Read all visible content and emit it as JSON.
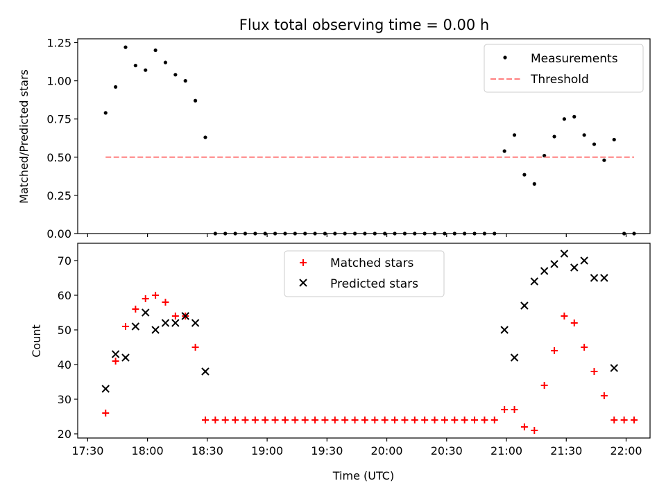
{
  "figure_title": "Flux total observing time = 0.00 h",
  "x_axis": {
    "label": "Time (UTC)",
    "ticks": [
      {
        "label": "17:30",
        "value": -30
      },
      {
        "label": "18:00",
        "value": 0
      },
      {
        "label": "18:30",
        "value": 30
      },
      {
        "label": "19:00",
        "value": 60
      },
      {
        "label": "19:30",
        "value": 90
      },
      {
        "label": "20:00",
        "value": 120
      },
      {
        "label": "20:30",
        "value": 150
      },
      {
        "label": "21:00",
        "value": 180
      },
      {
        "label": "21:30",
        "value": 210
      },
      {
        "label": "22:00",
        "value": 240
      }
    ]
  },
  "colors": {
    "measurements": "#000000",
    "threshold": "#ff7f7f",
    "matched": "#ff0000",
    "predicted": "#000000"
  },
  "chart_data": [
    {
      "type": "scatter",
      "title": "Flux total observing time = 0.00 h",
      "xlabel": "",
      "ylabel": "Matched/Predicted stars",
      "xlim": [
        -35,
        252
      ],
      "ylim": [
        0,
        1.275
      ],
      "yticks": [
        "0.00",
        "0.25",
        "0.50",
        "0.75",
        "1.00",
        "1.25"
      ],
      "legend_position": "top-right",
      "series": [
        {
          "name": "Measurements",
          "marker": "dot",
          "x": [
            -21,
            -16,
            -11,
            -6,
            -1,
            4,
            9,
            14,
            19,
            24,
            29,
            34,
            39,
            44,
            49,
            54,
            59,
            64,
            69,
            74,
            79,
            84,
            89,
            94,
            99,
            104,
            109,
            114,
            119,
            124,
            129,
            134,
            139,
            144,
            149,
            154,
            159,
            164,
            169,
            174,
            179,
            184,
            189,
            194,
            199,
            204,
            209,
            214,
            219,
            224,
            229,
            234,
            239,
            244
          ],
          "y": [
            0.79,
            0.96,
            1.22,
            1.1,
            1.07,
            1.2,
            1.12,
            1.04,
            1.0,
            0.87,
            0.63,
            0,
            0,
            0,
            0,
            0,
            0,
            0,
            0,
            0,
            0,
            0,
            0,
            0,
            0,
            0,
            0,
            0,
            0,
            0,
            0,
            0,
            0,
            0,
            0,
            0,
            0,
            0,
            0,
            0,
            0.54,
            0.645,
            0.385,
            0.325,
            0.51,
            0.635,
            0.75,
            0.765,
            0.645,
            0.585,
            0.48,
            0.615,
            0,
            0
          ]
        },
        {
          "name": "Threshold",
          "marker": "dashed-line",
          "x": [
            -21,
            244
          ],
          "y": [
            0.5,
            0.5
          ]
        }
      ]
    },
    {
      "type": "scatter",
      "title": "",
      "xlabel": "Time (UTC)",
      "ylabel": "Count",
      "xlim": [
        -35,
        252
      ],
      "ylim": [
        18.8,
        75
      ],
      "yticks": [
        "20",
        "30",
        "40",
        "50",
        "60",
        "70"
      ],
      "legend_position": "top-center",
      "series": [
        {
          "name": "Matched stars",
          "marker": "plus",
          "x": [
            -21,
            -16,
            -11,
            -6,
            -1,
            4,
            9,
            14,
            19,
            24,
            29,
            34,
            39,
            44,
            49,
            54,
            59,
            64,
            69,
            74,
            79,
            84,
            89,
            94,
            99,
            104,
            109,
            114,
            119,
            124,
            129,
            134,
            139,
            144,
            149,
            154,
            159,
            164,
            169,
            174,
            179,
            184,
            189,
            194,
            199,
            204,
            209,
            214,
            219,
            224,
            229,
            234,
            239,
            244
          ],
          "y": [
            26,
            41,
            51,
            56,
            59,
            60,
            58,
            54,
            54,
            45,
            24,
            24,
            24,
            24,
            24,
            24,
            24,
            24,
            24,
            24,
            24,
            24,
            24,
            24,
            24,
            24,
            24,
            24,
            24,
            24,
            24,
            24,
            24,
            24,
            24,
            24,
            24,
            24,
            24,
            24,
            27,
            27,
            22,
            21,
            34,
            44,
            54,
            52,
            45,
            38,
            31,
            24,
            24,
            24
          ]
        },
        {
          "name": "Predicted stars",
          "marker": "x",
          "x": [
            -21,
            -16,
            -11,
            -6,
            -1,
            4,
            9,
            14,
            19,
            24,
            29,
            179,
            184,
            189,
            194,
            199,
            204,
            209,
            214,
            219,
            224,
            229,
            234
          ],
          "y": [
            33,
            43,
            42,
            51,
            55,
            50,
            52,
            52,
            54,
            52,
            38,
            50,
            42,
            57,
            64,
            67,
            69,
            72,
            68,
            70,
            65,
            65,
            39
          ]
        }
      ]
    }
  ]
}
